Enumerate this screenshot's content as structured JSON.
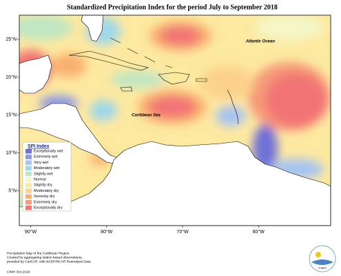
{
  "title": "Standardized Precipitation Index for the period July to September 2018",
  "map": {
    "xlim": [
      -91.5,
      -50.5
    ],
    "ylim": [
      0.4,
      28.2
    ],
    "xticks": [
      {
        "value": -90,
        "label": "90°W"
      },
      {
        "value": -80,
        "label": "80°W"
      },
      {
        "value": -70,
        "label": "70°W"
      },
      {
        "value": -60,
        "label": "60°W"
      }
    ],
    "yticks": [
      {
        "value": 25,
        "label": "25°N"
      },
      {
        "value": 20,
        "label": "20°N"
      },
      {
        "value": 15,
        "label": "15°N"
      },
      {
        "value": 10,
        "label": "10°N"
      },
      {
        "value": 5,
        "label": "5°N"
      }
    ]
  },
  "labels": {
    "atlantic": "Atlantic Ocean",
    "caribbean": "Caribbean Sea"
  },
  "legend": {
    "title": "SPI Index",
    "items": [
      {
        "label": "Exceptionally wet",
        "color": "#7070d8"
      },
      {
        "label": "Extremely wet",
        "color": "#8c9ae6"
      },
      {
        "label": "Very wet",
        "color": "#a6c4f2"
      },
      {
        "label": "Moderately wet",
        "color": "#9ed8ea"
      },
      {
        "label": "Slightly wet",
        "color": "#bfe6c2"
      },
      {
        "label": "Normal",
        "color": "#f4f7c8"
      },
      {
        "label": "Slightly dry",
        "color": "#fde9a0"
      },
      {
        "label": "Moderately dry",
        "color": "#fcd28a"
      },
      {
        "label": "Severely dry",
        "color": "#f9b070"
      },
      {
        "label": "Extremely dry",
        "color": "#f69a78"
      },
      {
        "label": "Exceptionally dry",
        "color": "#f27474"
      }
    ]
  },
  "footnote": [
    "Precipitation Map of the Caribbean Region.",
    "Created by aggregating station based observations,",
    "provided by CariCOF, with NCEP/NCAR Reanalysis Data."
  ],
  "credit": "CIMH Oct-2018",
  "logo": "CIMH"
}
